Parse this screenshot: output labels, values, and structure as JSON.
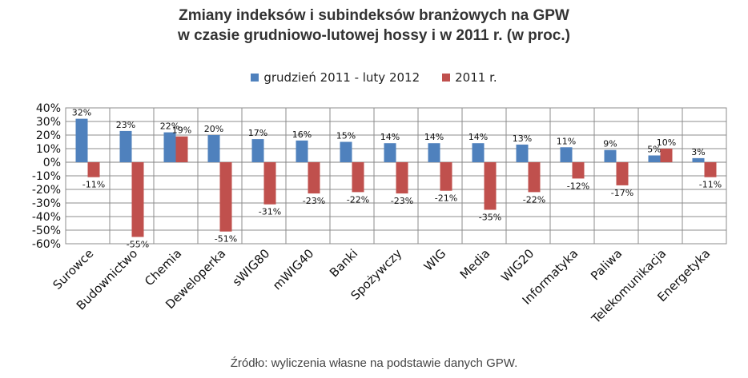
{
  "chart_data": {
    "type": "bar",
    "title": "Zmiany indeksów i subindeksów branżowych na GPW",
    "subtitle": "w czasie grudniowo-lutowej hossy i w 2011 r. (w proc.)",
    "categories": [
      "Surowce",
      "Budownictwo",
      "Chemia",
      "Deweloperka",
      "sWIG80",
      "mWIG40",
      "Banki",
      "Spożywczy",
      "WIG",
      "Media",
      "WIG20",
      "Informatyka",
      "Paliwa",
      "Telekomunikacja",
      "Energetyka"
    ],
    "series": [
      {
        "name": "grudzień 2011 - luty 2012",
        "color": "#4F81BD",
        "values": [
          32,
          23,
          22,
          20,
          17,
          16,
          15,
          14,
          14,
          14,
          13,
          11,
          9,
          5,
          3
        ],
        "labels": [
          "32%",
          "23%",
          "22%",
          "20%",
          "17%",
          "16%",
          "15%",
          "14%",
          "14%",
          "14%",
          "13%",
          "11%",
          "9%",
          "5%",
          "3%"
        ]
      },
      {
        "name": "2011 r.",
        "color": "#C0504D",
        "values": [
          -11,
          -55,
          19,
          -51,
          -31,
          -23,
          -22,
          -23,
          -21,
          -35,
          -22,
          -12,
          -17,
          10,
          -11
        ],
        "labels": [
          "-11%",
          "-55%",
          "19%",
          "-51%",
          "-31%",
          "-23%",
          "-22%",
          "-23%",
          "-21%",
          "-35%",
          "-22%",
          "-12%",
          "-17%",
          "10%",
          "-11%"
        ]
      }
    ],
    "ylim": [
      -60,
      40
    ],
    "yticks": [
      "40%",
      "30%",
      "20%",
      "10%",
      "0%",
      "-10%",
      "-20%",
      "-30%",
      "-40%",
      "-50%",
      "-60%"
    ],
    "grid": true,
    "legend_position": "top"
  },
  "source": "Źródło: wyliczenia własne na podstawie danych GPW."
}
